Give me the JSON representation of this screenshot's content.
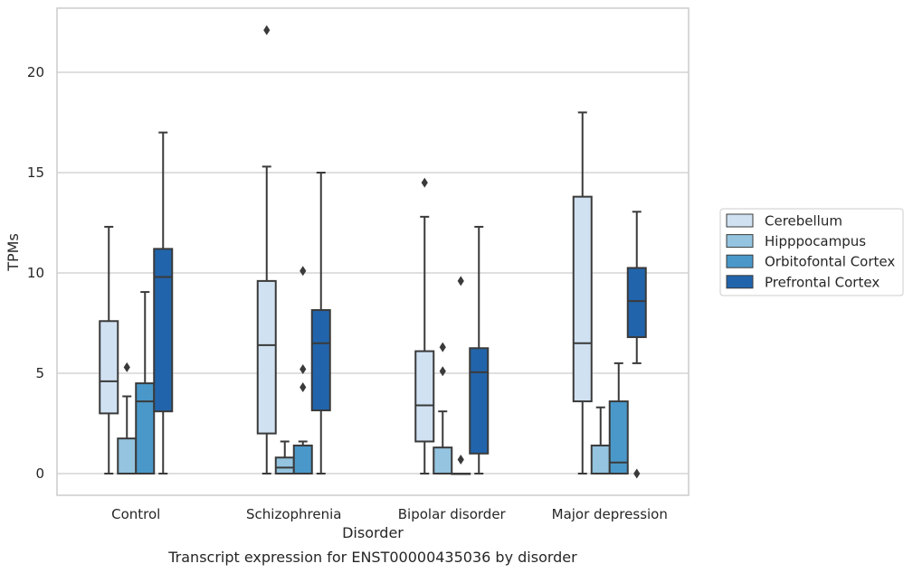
{
  "chart_data": {
    "type": "box",
    "title": "",
    "caption": "Transcript expression for ENST00000435036 by disorder",
    "xlabel": "Disorder",
    "ylabel": "TPMs",
    "ylim": [
      -1.05,
      23.1
    ],
    "yticks": [
      0,
      5,
      10,
      15,
      20
    ],
    "grid": "horizontal",
    "legend_position": "right",
    "categories": [
      "Control",
      "Schizophrenia",
      "Bipolar disorder",
      "Major depression"
    ],
    "series": [
      {
        "name": "Cerebellum",
        "color": "#d0e1f2",
        "boxes": [
          {
            "whislo": 0,
            "q1": 3.0,
            "med": 4.6,
            "q3": 7.6,
            "whishi": 12.3,
            "fliers": []
          },
          {
            "whislo": 0,
            "q1": 2.0,
            "med": 6.4,
            "q3": 9.6,
            "whishi": 15.3,
            "fliers": [
              22.1
            ]
          },
          {
            "whislo": 0,
            "q1": 1.6,
            "med": 3.4,
            "q3": 6.1,
            "whishi": 12.8,
            "fliers": [
              14.5
            ]
          },
          {
            "whislo": 0,
            "q1": 3.6,
            "med": 6.5,
            "q3": 13.8,
            "whishi": 18.0,
            "fliers": []
          }
        ]
      },
      {
        "name": "Hipppocampus",
        "color": "#94c4df",
        "boxes": [
          {
            "whislo": 0,
            "q1": 0,
            "med": 0,
            "q3": 1.75,
            "whishi": 3.85,
            "fliers": [
              5.3
            ]
          },
          {
            "whislo": 0,
            "q1": 0,
            "med": 0.3,
            "q3": 0.8,
            "whishi": 1.6,
            "fliers": []
          },
          {
            "whislo": 0,
            "q1": 0,
            "med": 0,
            "q3": 1.3,
            "whishi": 3.1,
            "fliers": [
              5.1,
              6.3
            ]
          },
          {
            "whislo": 0,
            "q1": 0,
            "med": 0,
            "q3": 1.4,
            "whishi": 3.3,
            "fliers": []
          }
        ]
      },
      {
        "name": "Orbitofontal Cortex",
        "color": "#4a98c9",
        "boxes": [
          {
            "whislo": 0,
            "q1": 0,
            "med": 3.6,
            "q3": 4.5,
            "whishi": 9.05,
            "fliers": []
          },
          {
            "whislo": 0,
            "q1": 0,
            "med": 0,
            "q3": 1.4,
            "whishi": 1.6,
            "fliers": [
              4.3,
              5.2,
              10.1
            ]
          },
          {
            "whislo": 0,
            "q1": 0,
            "med": 0,
            "q3": 0,
            "whishi": 0,
            "fliers": [
              0.7,
              9.6
            ]
          },
          {
            "whislo": 0,
            "q1": 0,
            "med": 0.55,
            "q3": 3.6,
            "whishi": 5.5,
            "fliers": []
          }
        ]
      },
      {
        "name": "Prefrontal Cortex",
        "color": "#2164ab",
        "boxes": [
          {
            "whislo": 0,
            "q1": 3.1,
            "med": 9.8,
            "q3": 11.2,
            "whishi": 17.0,
            "fliers": []
          },
          {
            "whislo": 0,
            "q1": 3.15,
            "med": 6.5,
            "q3": 8.15,
            "whishi": 15.0,
            "fliers": []
          },
          {
            "whislo": 0,
            "q1": 1.0,
            "med": 5.05,
            "q3": 6.25,
            "whishi": 12.3,
            "fliers": []
          },
          {
            "whislo": 5.5,
            "q1": 6.8,
            "med": 8.6,
            "q3": 10.25,
            "whishi": 13.05,
            "fliers": [
              0
            ]
          }
        ]
      }
    ]
  }
}
